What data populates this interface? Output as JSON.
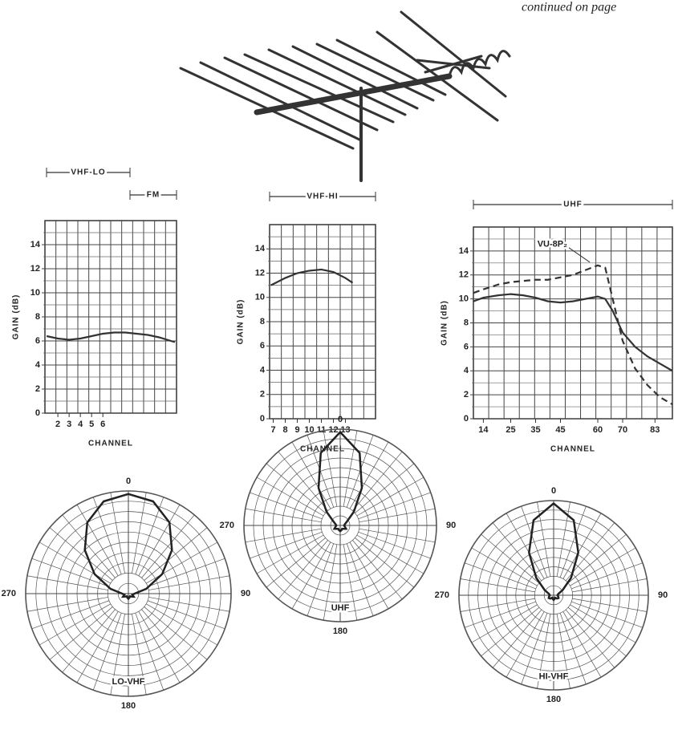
{
  "header": {
    "text": "continued on page"
  },
  "chart_data": [
    {
      "type": "line",
      "annotations": [
        "VHF-LO",
        "FM"
      ],
      "y_label": "GAIN (dB)",
      "x_label": "CHANNEL",
      "x": [
        1.0,
        2,
        3,
        4,
        5,
        6,
        7,
        8,
        9,
        10,
        11,
        12.4
      ],
      "series": [
        {
          "color": "#333",
          "dash": false,
          "values": [
            6.4,
            6.2,
            6.1,
            6.2,
            6.4,
            6.6,
            6.7,
            6.7,
            6.6,
            6.5,
            6.3,
            5.9
          ]
        }
      ],
      "xlim": [
        0.85,
        12.55
      ],
      "xticks": [
        2,
        3,
        4,
        5,
        6
      ],
      "ylim": [
        0,
        16
      ],
      "yticks": [
        0,
        2,
        4,
        6,
        8,
        10,
        12,
        14
      ],
      "grid": true
    },
    {
      "type": "line",
      "annotations": [
        "VHF-HI"
      ],
      "y_label": "GAIN (dB)",
      "x_label": "CHANNEL",
      "x": [
        6.8,
        7,
        8,
        9,
        10,
        11,
        12,
        13,
        13.6
      ],
      "series": [
        {
          "color": "#333",
          "dash": false,
          "values": [
            11,
            11.1,
            11.6,
            12,
            12.2,
            12.3,
            12.1,
            11.6,
            11.2
          ]
        }
      ],
      "xlim": [
        6.7,
        15.5
      ],
      "xticks": [
        7,
        8,
        9,
        10,
        11,
        12,
        13
      ],
      "ylim": [
        0,
        16
      ],
      "yticks": [
        0,
        2,
        4,
        6,
        8,
        10,
        12,
        14
      ],
      "grid": true
    },
    {
      "type": "line",
      "annotations": [
        "UHF"
      ],
      "y_label": "GAIN (dB)",
      "x_label": "CHANNEL",
      "x": [
        10,
        14,
        20,
        25,
        30,
        35,
        40,
        45,
        50,
        55,
        60,
        63,
        66,
        70,
        75,
        80,
        85,
        90
      ],
      "series": [
        {
          "color": "#333",
          "dash": false,
          "values": [
            9.8,
            10.1,
            10.3,
            10.4,
            10.3,
            10.1,
            9.8,
            9.7,
            9.8,
            10,
            10.2,
            10,
            9,
            7.2,
            6,
            5.2,
            4.6,
            4
          ]
        },
        {
          "name": "VU-8P₂",
          "color": "#333",
          "dash": true,
          "values": [
            10.5,
            10.8,
            11.2,
            11.4,
            11.5,
            11.6,
            11.6,
            11.8,
            12,
            12.4,
            12.8,
            12.6,
            10,
            6.5,
            4.2,
            2.8,
            1.8,
            1.2
          ]
        }
      ],
      "xlim": [
        10,
        90
      ],
      "xticks": [
        14,
        25,
        35,
        45,
        60,
        70,
        83
      ],
      "ylim": [
        0,
        16
      ],
      "yticks": [
        0,
        2,
        4,
        6,
        8,
        10,
        12,
        14
      ],
      "grid": true
    },
    {
      "type": "polar",
      "name": "LO-VHF",
      "color": "#222",
      "theta": [
        0,
        15,
        30,
        45,
        60,
        75,
        90,
        105,
        120,
        135,
        150,
        165,
        180,
        195,
        210,
        225,
        240,
        255,
        270,
        285,
        300,
        315,
        330,
        345
      ],
      "r": [
        0.97,
        0.93,
        0.8,
        0.6,
        0.38,
        0.18,
        0.06,
        0.04,
        0.06,
        0.04,
        0.03,
        0.04,
        0.05,
        0.04,
        0.03,
        0.04,
        0.06,
        0.04,
        0.06,
        0.18,
        0.38,
        0.6,
        0.8,
        0.93
      ],
      "rlim": [
        0,
        1
      ],
      "thetaticks": [
        0,
        90,
        180,
        270
      ]
    },
    {
      "type": "polar",
      "name": "UHF",
      "color": "#222",
      "theta": [
        0,
        15,
        30,
        45,
        60,
        75,
        90,
        105,
        120,
        135,
        150,
        165,
        180,
        195,
        210,
        225,
        240,
        255,
        270,
        285,
        300,
        315,
        330,
        345
      ],
      "r": [
        0.97,
        0.78,
        0.45,
        0.2,
        0.08,
        0.05,
        0.04,
        0.05,
        0.07,
        0.05,
        0.04,
        0.05,
        0.06,
        0.05,
        0.04,
        0.05,
        0.07,
        0.05,
        0.04,
        0.05,
        0.08,
        0.2,
        0.45,
        0.78
      ],
      "rlim": [
        0,
        1
      ],
      "thetaticks": [
        0,
        90,
        180,
        270
      ]
    },
    {
      "type": "polar",
      "name": "HI-VHF",
      "color": "#222",
      "theta": [
        0,
        15,
        30,
        45,
        60,
        75,
        90,
        105,
        120,
        135,
        150,
        165,
        180,
        195,
        210,
        225,
        240,
        255,
        270,
        285,
        300,
        315,
        330,
        345
      ],
      "r": [
        0.97,
        0.82,
        0.52,
        0.26,
        0.11,
        0.05,
        0.04,
        0.05,
        0.06,
        0.05,
        0.03,
        0.04,
        0.05,
        0.04,
        0.03,
        0.05,
        0.06,
        0.05,
        0.04,
        0.05,
        0.11,
        0.26,
        0.52,
        0.82
      ],
      "rlim": [
        0,
        1
      ],
      "thetaticks": [
        0,
        90,
        180,
        270
      ]
    }
  ]
}
